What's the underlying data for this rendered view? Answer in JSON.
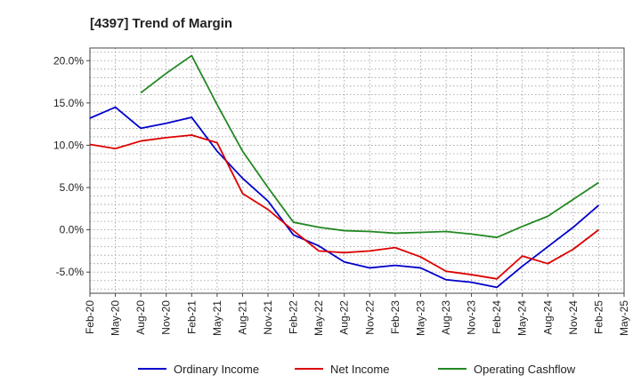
{
  "chart_data": {
    "type": "line",
    "title": "[4397]  Trend of Margin",
    "xlabel": "",
    "ylabel": "",
    "x": [
      "Feb-20",
      "May-20",
      "Aug-20",
      "Nov-20",
      "Feb-21",
      "May-21",
      "Aug-21",
      "Nov-21",
      "Feb-22",
      "May-22",
      "Aug-22",
      "Nov-22",
      "Feb-23",
      "May-23",
      "Aug-23",
      "Nov-23",
      "Feb-24",
      "May-24",
      "Aug-24",
      "Nov-24",
      "Feb-25",
      "May-25"
    ],
    "ylim": [
      -7.5,
      21.5
    ],
    "yticks": [
      -5,
      0,
      5,
      10,
      15,
      20
    ],
    "ytick_labels": [
      "-5.0%",
      "0.0%",
      "5.0%",
      "10.0%",
      "15.0%",
      "20.0%"
    ],
    "grid": true,
    "legend_position": "bottom",
    "series": [
      {
        "name": "Ordinary Income",
        "color": "#0000cc",
        "values": [
          13.2,
          14.5,
          12.0,
          12.6,
          13.3,
          9.3,
          6.1,
          3.4,
          -0.6,
          -1.9,
          -3.8,
          -4.5,
          -4.2,
          -4.5,
          -5.9,
          -6.2,
          -6.8,
          -4.3,
          -2.0,
          0.3,
          2.9,
          null
        ]
      },
      {
        "name": "Net Income",
        "color": "#dd0000",
        "values": [
          10.1,
          9.6,
          10.5,
          10.9,
          11.2,
          10.3,
          4.3,
          2.4,
          -0.1,
          -2.5,
          -2.7,
          -2.5,
          -2.1,
          -3.2,
          -4.9,
          -5.3,
          -5.8,
          -3.1,
          -4.0,
          -2.3,
          0.0,
          null
        ]
      },
      {
        "name": "Operating Cashflow",
        "color": "#228822",
        "values": [
          null,
          null,
          16.2,
          18.5,
          20.6,
          14.8,
          9.3,
          5.0,
          0.9,
          0.3,
          -0.1,
          -0.2,
          -0.4,
          -0.3,
          -0.2,
          -0.5,
          -0.9,
          0.4,
          1.6,
          3.6,
          5.6,
          null
        ]
      }
    ]
  }
}
